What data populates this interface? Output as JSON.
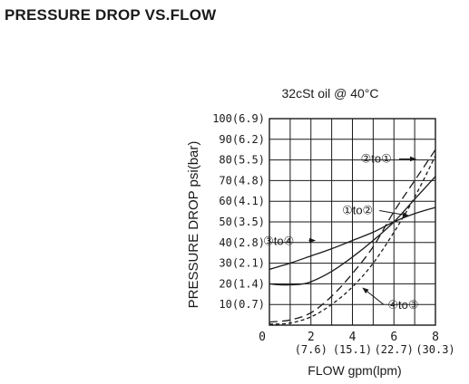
{
  "page": {
    "title": "PRESSURE DROP VS.FLOW"
  },
  "chart_data": {
    "type": "line",
    "title": "",
    "subtitle": "32cSt oil @ 40°C",
    "xlabel": "FLOW  gpm(lpm)",
    "ylabel": "PRESSURE DROP psi(bar)",
    "xlim": [
      0,
      8
    ],
    "ylim": [
      0,
      100
    ],
    "grid": true,
    "x_ticks": [
      {
        "value": 0,
        "label": "0",
        "sublabel": ""
      },
      {
        "value": 2,
        "label": "2",
        "sublabel": "(7.6)"
      },
      {
        "value": 4,
        "label": "4",
        "sublabel": "(15.1)"
      },
      {
        "value": 6,
        "label": "6",
        "sublabel": "(22.7)"
      },
      {
        "value": 8,
        "label": "8",
        "sublabel": "(30.3)"
      }
    ],
    "y_ticks": [
      {
        "value": 10,
        "label": "10(0.7)"
      },
      {
        "value": 20,
        "label": "20(1.4)"
      },
      {
        "value": 30,
        "label": "30(2.1)"
      },
      {
        "value": 40,
        "label": "40(2.8)"
      },
      {
        "value": 50,
        "label": "50(3.5)"
      },
      {
        "value": 60,
        "label": "60(4.1)"
      },
      {
        "value": 70,
        "label": "70(4.8)"
      },
      {
        "value": 80,
        "label": "80(5.5)"
      },
      {
        "value": 90,
        "label": "90(6.2)"
      },
      {
        "value": 100,
        "label": "100(6.9)"
      }
    ],
    "series": [
      {
        "name": "③to④",
        "dash": "none",
        "label": "③to④",
        "label_at": [
          -0.3,
          41
        ],
        "arrow_from": [
          1.9,
          41
        ],
        "arrow_to": [
          2.2,
          41
        ],
        "points": [
          [
            0,
            27
          ],
          [
            0.5,
            28.5
          ],
          [
            1,
            30
          ],
          [
            2,
            33.5
          ],
          [
            3,
            37
          ],
          [
            4,
            41
          ],
          [
            5,
            45
          ],
          [
            6,
            50
          ],
          [
            7,
            54
          ],
          [
            8,
            57
          ]
        ]
      },
      {
        "name": "①to②",
        "dash": "none",
        "label": "①to②",
        "label_at": [
          3.5,
          56
        ],
        "arrow_from": [
          5.3,
          55.5
        ],
        "arrow_to": [
          6.7,
          53
        ],
        "points": [
          [
            0,
            20
          ],
          [
            0.5,
            19.5
          ],
          [
            1,
            19.5
          ],
          [
            1.5,
            19.8
          ],
          [
            2,
            21
          ],
          [
            3,
            26
          ],
          [
            4,
            33
          ],
          [
            5,
            41
          ],
          [
            6,
            50
          ],
          [
            7,
            61
          ],
          [
            8,
            72
          ]
        ]
      },
      {
        "name": "②to①",
        "dash": "9,5",
        "label": "②to①",
        "label_at": [
          4.4,
          81
        ],
        "arrow_from": [
          6.25,
          80.5
        ],
        "arrow_to": [
          7.05,
          80.5
        ],
        "points": [
          [
            0,
            1.5
          ],
          [
            1,
            2.5
          ],
          [
            2,
            6
          ],
          [
            3,
            14
          ],
          [
            4,
            25
          ],
          [
            5,
            38
          ],
          [
            6,
            55
          ],
          [
            7,
            70
          ],
          [
            8,
            85
          ]
        ]
      },
      {
        "name": "④to③",
        "dash": "4,3",
        "label": "④to③",
        "label_at": [
          5.7,
          10
        ],
        "arrow_from": [
          5.5,
          10
        ],
        "arrow_to": [
          4.5,
          18
        ],
        "points": [
          [
            0,
            0.5
          ],
          [
            1,
            1
          ],
          [
            2,
            4
          ],
          [
            3,
            10
          ],
          [
            4,
            18.5
          ],
          [
            5,
            30
          ],
          [
            6,
            45
          ],
          [
            7,
            62
          ],
          [
            8,
            82
          ]
        ]
      }
    ]
  }
}
